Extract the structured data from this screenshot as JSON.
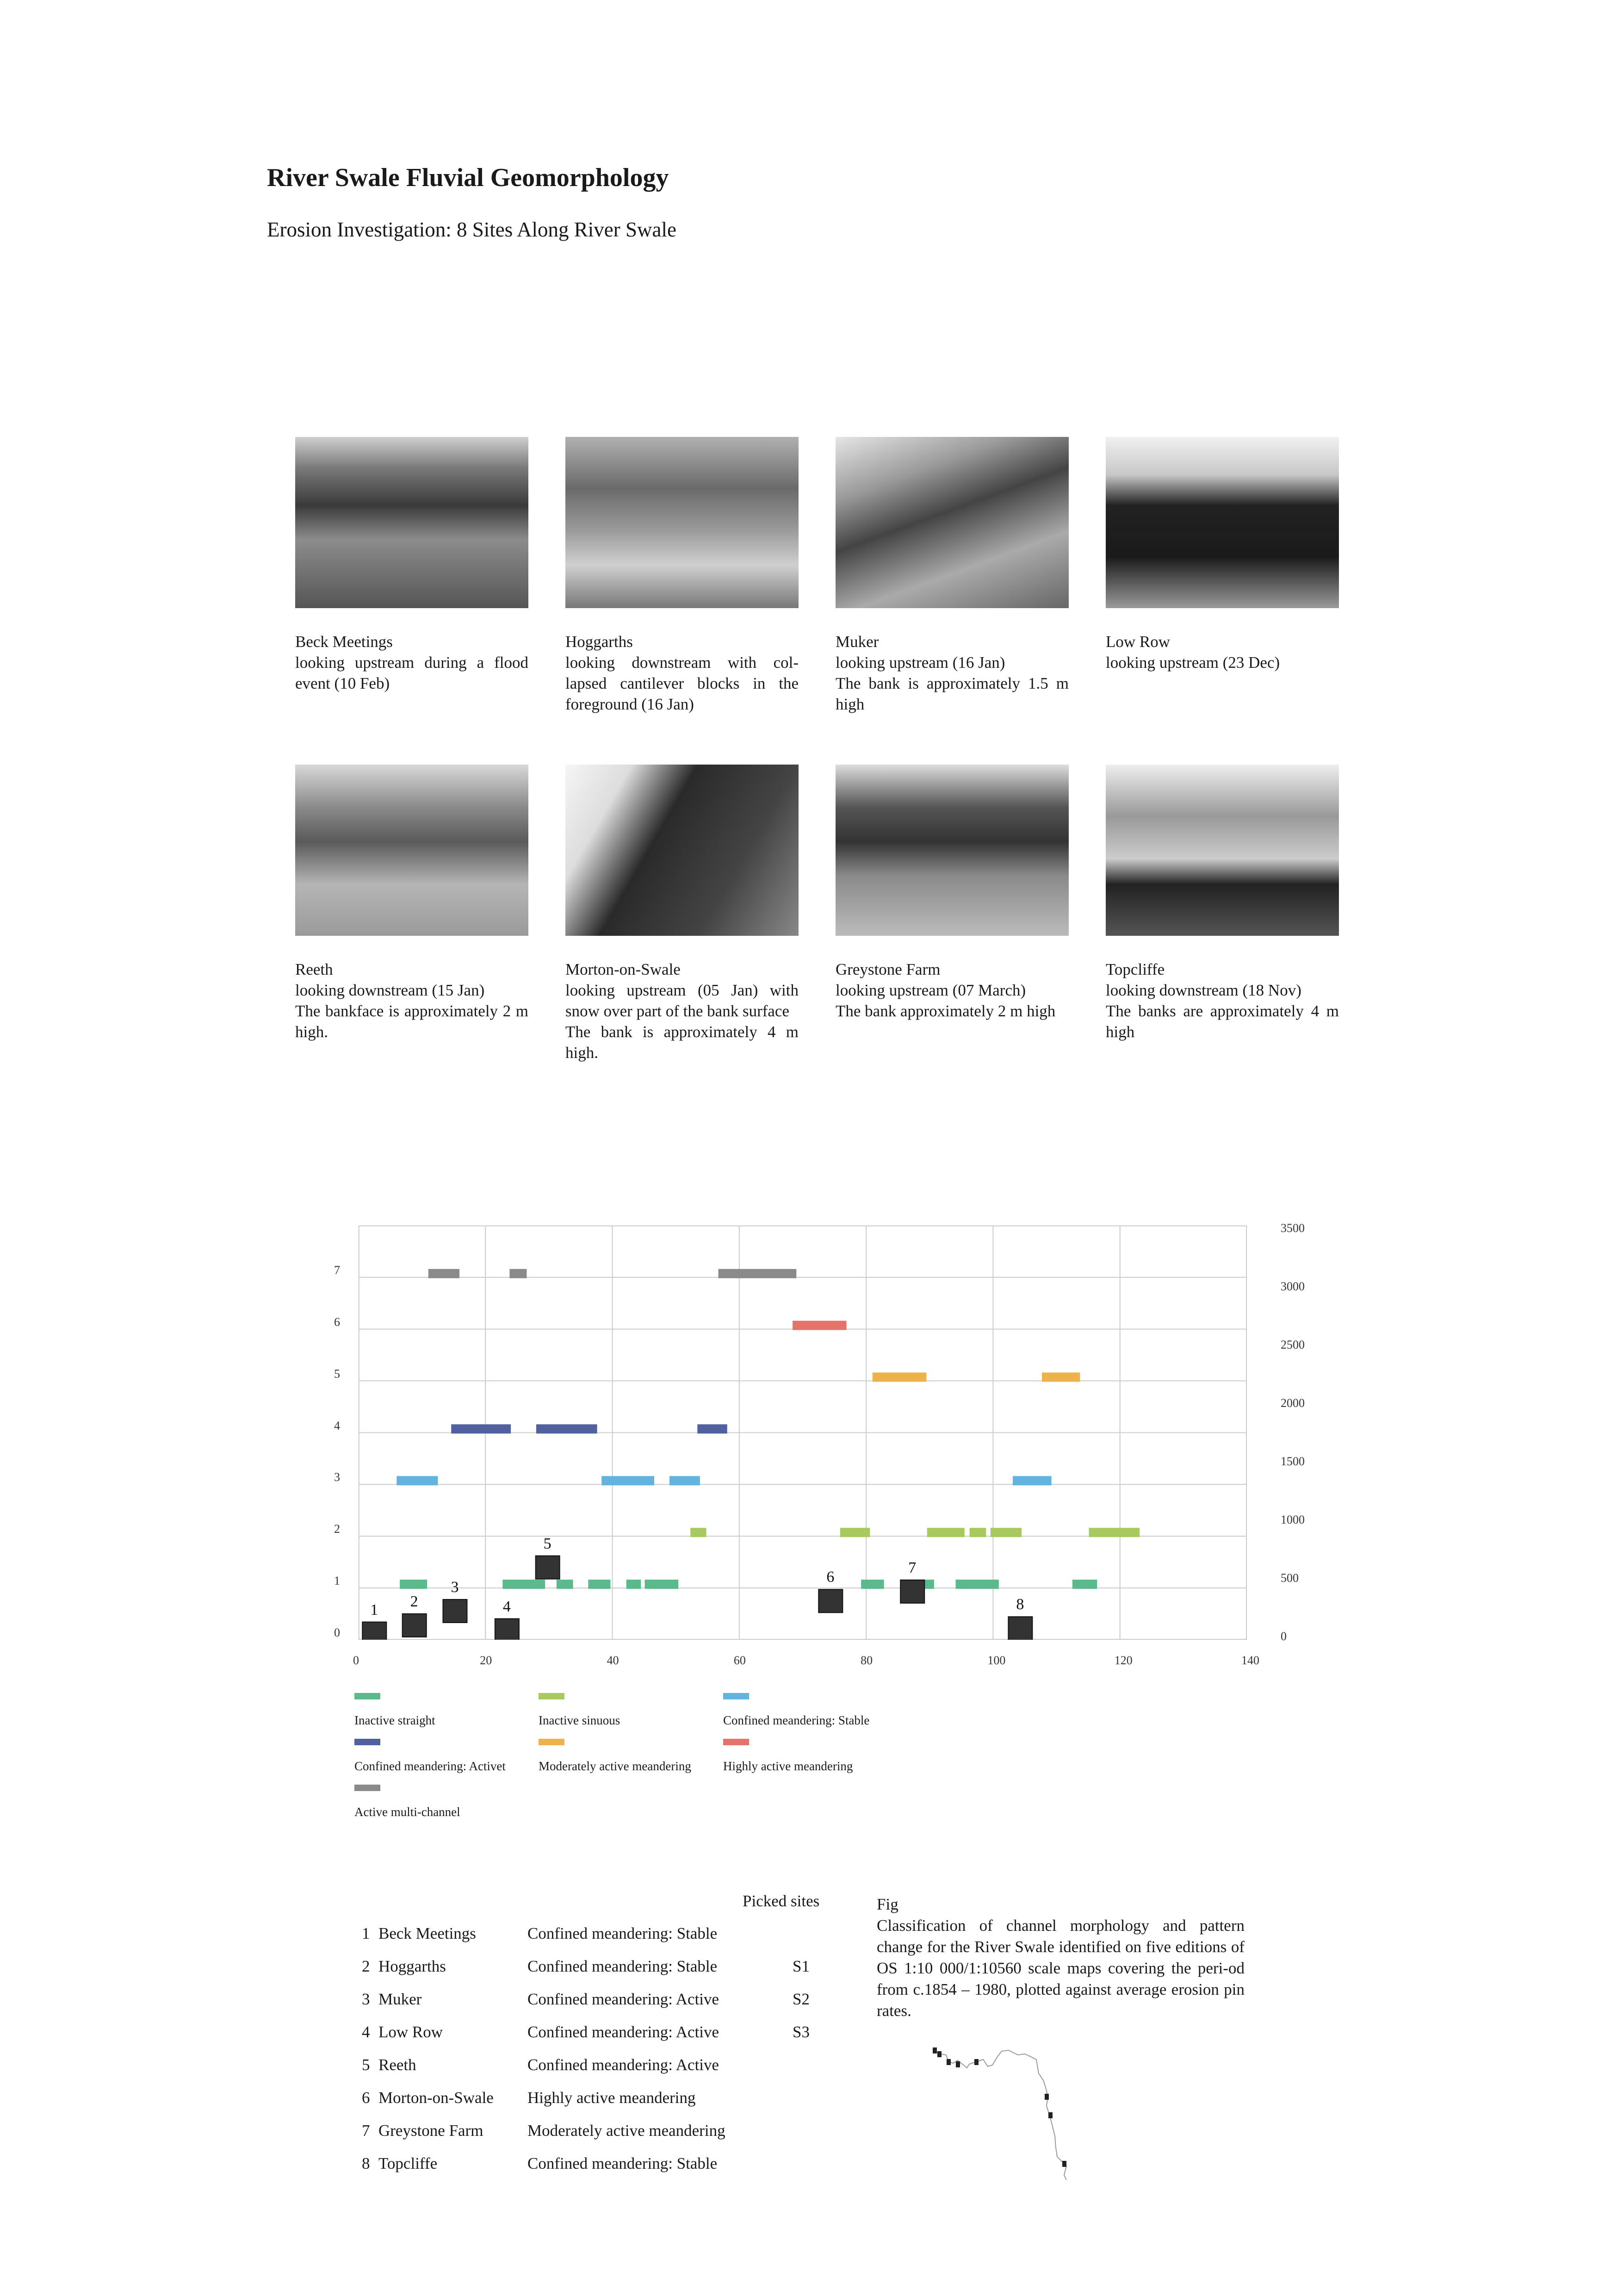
{
  "header": {
    "title": "River Swale Fluvial Geomorphology",
    "subtitle": "Erosion Investigation: 8 Sites Along River Swale"
  },
  "photos": [
    {
      "name": "Beck Meetings",
      "lines": [
        "looking upstream during a flood event (10 Feb)"
      ]
    },
    {
      "name": "Hoggarths",
      "lines": [
        "looking downstream with col-lapsed cantilever blocks in the foreground (16 Jan)"
      ]
    },
    {
      "name": "Muker",
      "lines": [
        "looking upstream (16 Jan)",
        "The bank is approximately 1.5 m high"
      ]
    },
    {
      "name": "Low Row",
      "lines": [
        "looking upstream (23 Dec)"
      ]
    },
    {
      "name": "Reeth",
      "lines": [
        "looking downstream (15 Jan)",
        "The bankface is approximately 2 m high."
      ]
    },
    {
      "name": "Morton-on-Swale",
      "lines": [
        "looking upstream (05 Jan) with snow over part of the bank surface",
        "The bank is approximately 4 m high."
      ]
    },
    {
      "name": "Greystone Farm",
      "lines": [
        "looking upstream (07 March)",
        "The bank approximately 2 m high"
      ]
    },
    {
      "name": "Topcliffe",
      "lines": [
        "looking downstream (18 Nov)",
        "The banks are approximately 4 m high"
      ]
    }
  ],
  "chart_data": {
    "type": "bar",
    "title": "",
    "xlabel": "",
    "ylabel": "",
    "xlim": [
      0,
      140
    ],
    "x_ticks": [
      "0",
      "20",
      "40",
      "60",
      "80",
      "100",
      "120",
      "140"
    ],
    "y_left_lim": [
      0,
      8
    ],
    "y_left_ticks": [
      "0",
      "1",
      "2",
      "3",
      "4",
      "5",
      "6",
      "7"
    ],
    "y_right_lim": [
      0,
      3550
    ],
    "y_right_ticks": [
      "0",
      "500",
      "1000",
      "1500",
      "2000",
      "2500",
      "3000",
      "3500"
    ],
    "grid": true,
    "legend_position": "bottom",
    "series": [
      {
        "name": "Inactive straight",
        "color": "#5bb98c",
        "class": 1,
        "segments": [
          [
            6.5,
            10.8
          ],
          [
            22.7,
            29.4
          ],
          [
            31.2,
            33.8
          ],
          [
            36.2,
            39.7
          ],
          [
            42.2,
            44.5
          ],
          [
            45.1,
            50.4
          ],
          [
            79.2,
            82.8
          ],
          [
            88.5,
            90.7
          ],
          [
            94.1,
            100.9
          ],
          [
            112.5,
            116.4
          ]
        ]
      },
      {
        "name": "Inactive sinuous",
        "color": "#a8c95e",
        "class": 2,
        "segments": [
          [
            52.3,
            54.8
          ],
          [
            75.9,
            80.6
          ],
          [
            89.6,
            95.5
          ],
          [
            96.3,
            98.9
          ],
          [
            99.6,
            104.5
          ],
          [
            115.1,
            123.1
          ]
        ]
      },
      {
        "name": "Confined meandering: Stable",
        "color": "#62b3dd",
        "class": 3,
        "segments": [
          [
            6.0,
            12.5
          ],
          [
            38.3,
            46.6
          ],
          [
            49.0,
            53.8
          ],
          [
            103.1,
            109.2
          ]
        ]
      },
      {
        "name": "Confined meandering: Activet",
        "color": "#5060a0",
        "class": 4,
        "segments": [
          [
            14.6,
            24.0
          ],
          [
            28.0,
            37.6
          ],
          [
            53.4,
            58.1
          ]
        ]
      },
      {
        "name": "Moderately active meandering",
        "color": "#eeb24a",
        "class": 5,
        "segments": [
          [
            81.0,
            89.5
          ],
          [
            107.7,
            113.7
          ]
        ]
      },
      {
        "name": "Highly active meandering",
        "color": "#e5736a",
        "class": 6,
        "segments": [
          [
            68.4,
            76.9
          ]
        ]
      },
      {
        "name": "Active multi-channel",
        "color": "#8a8a8a",
        "class": 7,
        "segments": [
          [
            11.0,
            15.9
          ],
          [
            23.8,
            26.5
          ],
          [
            56.7,
            69.0
          ]
        ]
      }
    ],
    "sites": {
      "color": "#333333",
      "points": [
        {
          "label": "1",
          "x": 2.5,
          "erosion": 53
        },
        {
          "label": "2",
          "x": 8.8,
          "erosion": 123
        },
        {
          "label": "3",
          "x": 15.2,
          "erosion": 246
        },
        {
          "label": "4",
          "x": 23.4,
          "erosion": 81
        },
        {
          "label": "5",
          "x": 29.8,
          "erosion": 620
        },
        {
          "label": "6",
          "x": 74.4,
          "erosion": 332
        },
        {
          "label": "7",
          "x": 87.3,
          "erosion": 413
        },
        {
          "label": "8",
          "x": 104.3,
          "erosion": 98
        }
      ]
    }
  },
  "table": {
    "picked_header": "Picked sites",
    "rows": [
      {
        "num": "1",
        "site": "Beck Meetings",
        "class": "Confined meandering: Stable",
        "picked": ""
      },
      {
        "num": "2",
        "site": "Hoggarths",
        "class": "Confined meandering: Stable",
        "picked": "S1"
      },
      {
        "num": "3",
        "site": "Muker",
        "class": "Confined meandering: Active",
        "picked": "S2"
      },
      {
        "num": "4",
        "site": "Low Row",
        "class": "Confined meandering: Active",
        "picked": "S3"
      },
      {
        "num": "5",
        "site": "Reeth",
        "class": "Confined meandering: Active",
        "picked": ""
      },
      {
        "num": "6",
        "site": "Morton-on-Swale",
        "class": "Highly active meandering",
        "picked": ""
      },
      {
        "num": "7",
        "site": "Greystone Farm",
        "class": "Moderately active meandering",
        "picked": ""
      },
      {
        "num": "8",
        "site": "Topcliffe",
        "class": "Confined meandering: Stable",
        "picked": ""
      }
    ]
  },
  "figure": {
    "label": "Fig",
    "caption": "Classification of channel morphology and pattern change for the River Swale identified on five editions of OS 1:10 000/1:10560 scale maps covering the peri-od from c.1854 – 1980, plotted against average erosion pin rates."
  }
}
